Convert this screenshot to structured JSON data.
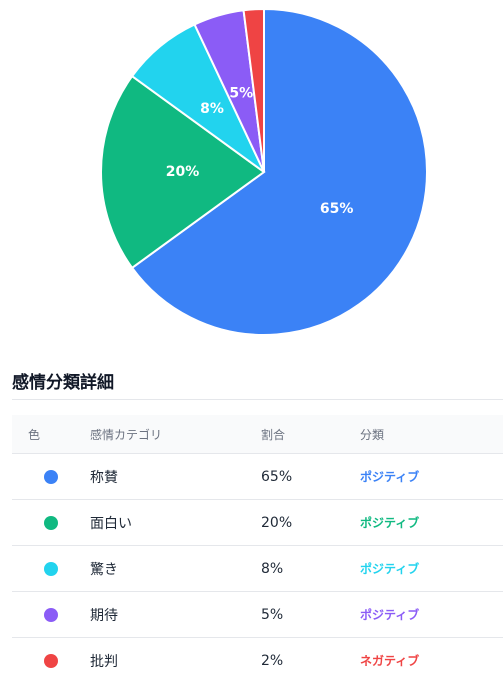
{
  "chart_data": {
    "type": "pie",
    "slices": [
      {
        "label": "称賛",
        "value": 65,
        "color": "#3b82f6",
        "label_text": "65%"
      },
      {
        "label": "面白い",
        "value": 20,
        "color": "#10b981",
        "label_text": "20%"
      },
      {
        "label": "驚き",
        "value": 8,
        "color": "#22d3ee",
        "label_text": "8%"
      },
      {
        "label": "期待",
        "value": 5,
        "color": "#8b5cf6",
        "label_text": "5%"
      },
      {
        "label": "批判",
        "value": 2,
        "color": "#ef4444",
        "label_text": ""
      }
    ]
  },
  "details": {
    "title": "感情分類詳細",
    "headers": {
      "color": "色",
      "category": "感情カテゴリ",
      "ratio": "割合",
      "class": "分類"
    },
    "rows": [
      {
        "color": "#3b82f6",
        "category": "称賛",
        "ratio": "65%",
        "class": "ポジティブ",
        "class_color": "#3b82f6"
      },
      {
        "color": "#10b981",
        "category": "面白い",
        "ratio": "20%",
        "class": "ポジティブ",
        "class_color": "#10b981"
      },
      {
        "color": "#22d3ee",
        "category": "驚き",
        "ratio": "8%",
        "class": "ポジティブ",
        "class_color": "#22d3ee"
      },
      {
        "color": "#8b5cf6",
        "category": "期待",
        "ratio": "5%",
        "class": "ポジティブ",
        "class_color": "#8b5cf6"
      },
      {
        "color": "#ef4444",
        "category": "批判",
        "ratio": "2%",
        "class": "ネガティブ",
        "class_color": "#ef4444"
      }
    ]
  }
}
